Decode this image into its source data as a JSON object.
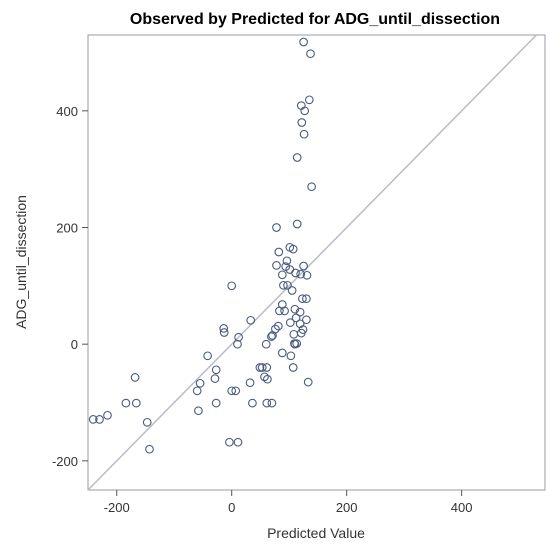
{
  "chart_data": {
    "type": "scatter",
    "title": "Observed by Predicted for ADG_until_dissection",
    "xlabel": "Predicted Value",
    "ylabel": "ADG_until_dissection",
    "xlim": [
      -250,
      545
    ],
    "ylim": [
      -250,
      530
    ],
    "xticks": [
      -200,
      0,
      200,
      400
    ],
    "yticks": [
      -200,
      0,
      200,
      400
    ],
    "x_tick_labels": [
      "-200",
      "0",
      "200",
      "400"
    ],
    "y_tick_labels": [
      "-200",
      "0",
      "200",
      "400"
    ],
    "reference_line": "y = x",
    "grid": false,
    "legend": "none",
    "colors": {
      "marker": "#4a5a7e",
      "reference_line": "#b9bcc8",
      "frame": "#999aa6"
    },
    "series": [
      {
        "points": [
          {
            "x": 125,
            "y": 518
          },
          {
            "x": 137,
            "y": 498
          },
          {
            "x": 135,
            "y": 419
          },
          {
            "x": 121,
            "y": 409
          },
          {
            "x": 127,
            "y": 400
          },
          {
            "x": 122,
            "y": 380
          },
          {
            "x": 126,
            "y": 360
          },
          {
            "x": 114,
            "y": 320
          },
          {
            "x": 139,
            "y": 270
          },
          {
            "x": 114,
            "y": 206
          },
          {
            "x": 78,
            "y": 200
          },
          {
            "x": 101,
            "y": 166
          },
          {
            "x": 107,
            "y": 163
          },
          {
            "x": 82,
            "y": 158
          },
          {
            "x": 96,
            "y": 143
          },
          {
            "x": 78,
            "y": 135
          },
          {
            "x": 94,
            "y": 133
          },
          {
            "x": 125,
            "y": 134
          },
          {
            "x": 101,
            "y": 128
          },
          {
            "x": 111,
            "y": 122
          },
          {
            "x": 120,
            "y": 120
          },
          {
            "x": 88,
            "y": 119
          },
          {
            "x": 131,
            "y": 118
          },
          {
            "x": 90,
            "y": 101
          },
          {
            "x": 97,
            "y": 101
          },
          {
            "x": 105,
            "y": 92
          },
          {
            "x": 123,
            "y": 78
          },
          {
            "x": 130,
            "y": 78
          },
          {
            "x": 88,
            "y": 68
          },
          {
            "x": 110,
            "y": 60
          },
          {
            "x": 83,
            "y": 57
          },
          {
            "x": 92,
            "y": 57
          },
          {
            "x": 119,
            "y": 55
          },
          {
            "x": 112,
            "y": 45
          },
          {
            "x": 130,
            "y": 42
          },
          {
            "x": 102,
            "y": 37
          },
          {
            "x": 119,
            "y": 35
          },
          {
            "x": 81,
            "y": 31
          },
          {
            "x": 76,
            "y": 26
          },
          {
            "x": 124,
            "y": 25
          },
          {
            "x": 121,
            "y": 19
          },
          {
            "x": 108,
            "y": 17
          },
          {
            "x": 71,
            "y": 15
          },
          {
            "x": 69,
            "y": 13
          },
          {
            "x": 109,
            "y": 1
          },
          {
            "x": 113,
            "y": 1
          },
          {
            "x": 110,
            "y": 0
          },
          {
            "x": 88,
            "y": -15
          },
          {
            "x": 103,
            "y": -20
          },
          {
            "x": 107,
            "y": -40
          },
          {
            "x": 133,
            "y": -65
          },
          {
            "x": 60,
            "y": 0
          },
          {
            "x": 12,
            "y": 12
          },
          {
            "x": 10,
            "y": 0
          },
          {
            "x": -14,
            "y": 27
          },
          {
            "x": -13,
            "y": 20
          },
          {
            "x": 33,
            "y": 41
          },
          {
            "x": 0,
            "y": 100
          },
          {
            "x": -42,
            "y": -20
          },
          {
            "x": -27,
            "y": -44
          },
          {
            "x": -29,
            "y": -59
          },
          {
            "x": -55,
            "y": -67
          },
          {
            "x": -60,
            "y": -80
          },
          {
            "x": 0,
            "y": -80
          },
          {
            "x": 7,
            "y": -80
          },
          {
            "x": 49,
            "y": -40
          },
          {
            "x": 53,
            "y": -40
          },
          {
            "x": 61,
            "y": -40
          },
          {
            "x": 57,
            "y": -56
          },
          {
            "x": 62,
            "y": -60
          },
          {
            "x": 32,
            "y": -66
          },
          {
            "x": -27,
            "y": -101
          },
          {
            "x": 36,
            "y": -101
          },
          {
            "x": 61,
            "y": -101
          },
          {
            "x": 70,
            "y": -101
          },
          {
            "x": -58,
            "y": -114
          },
          {
            "x": -4,
            "y": -168
          },
          {
            "x": 11,
            "y": -168
          },
          {
            "x": -168,
            "y": -57
          },
          {
            "x": -184,
            "y": -101
          },
          {
            "x": -166,
            "y": -101
          },
          {
            "x": -216,
            "y": -122
          },
          {
            "x": -230,
            "y": -129
          },
          {
            "x": -241,
            "y": -129
          },
          {
            "x": -147,
            "y": -134
          },
          {
            "x": -143,
            "y": -180
          }
        ]
      }
    ]
  }
}
